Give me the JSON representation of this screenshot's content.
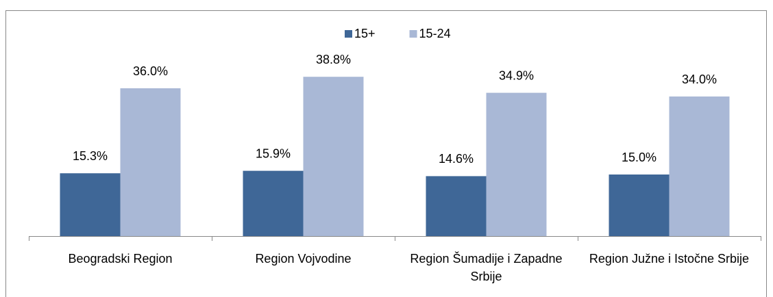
{
  "chart_data": {
    "type": "bar",
    "categories": [
      "Beogradski Region",
      "Region Vojvodine",
      "Region Šumadije i Zapadne Srbije",
      "Region Južne i Istočne Srbije"
    ],
    "series": [
      {
        "name": "15+",
        "color": "#3f6797",
        "values": [
          15.3,
          15.9,
          14.6,
          15.0
        ],
        "value_labels": [
          "15.3%",
          "15.9%",
          "14.6%",
          "15.0%"
        ]
      },
      {
        "name": "15-24",
        "color": "#a9b8d6",
        "values": [
          36.0,
          38.8,
          34.9,
          34.0
        ],
        "value_labels": [
          "36.0%",
          "38.8%",
          "34.9%",
          "34.0%"
        ]
      }
    ],
    "ylim": [
      0,
      50
    ],
    "legend": "top"
  }
}
